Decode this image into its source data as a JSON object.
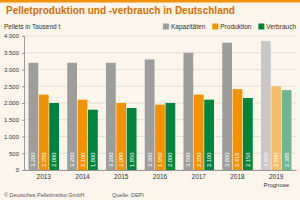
{
  "chart_data": {
    "type": "bar",
    "title": "Pelletproduktion und -verbrauch in Deutschland",
    "y_label": "Pellets in Tausend t",
    "categories": [
      "2013",
      "2014",
      "2015",
      "2016",
      "2017",
      "2018",
      "2019"
    ],
    "series": [
      {
        "name": "Kapazitäten",
        "color": "#9d9d9c",
        "colors": [
          "#9d9d9c",
          "#9d9d9c",
          "#9d9d9c",
          "#9d9d9c",
          "#9d9d9c",
          "#9d9d9c",
          "#c8c8c7"
        ],
        "values": [
          3200,
          3200,
          3200,
          3300,
          3500,
          3800,
          3850
        ],
        "value_labels": [
          "3.200",
          "3.200",
          "3.200",
          "3.300",
          "3.500",
          "3.800",
          "3.850"
        ]
      },
      {
        "name": "Produktion",
        "color": "#f39200",
        "colors": [
          "#f39200",
          "#f39200",
          "#f39200",
          "#f39200",
          "#f39200",
          "#f39200",
          "#f8bd6b"
        ],
        "values": [
          2250,
          2100,
          2000,
          1950,
          2250,
          2415,
          2500
        ],
        "value_labels": [
          "2.250",
          "2.100",
          "2.000",
          "1.950",
          "2.250",
          "2.415",
          "2.500"
        ]
      },
      {
        "name": "Verbrauch",
        "color": "#00843d",
        "colors": [
          "#00843d",
          "#00843d",
          "#00843d",
          "#00843d",
          "#00843d",
          "#00843d",
          "#6fb88f"
        ],
        "values": [
          2000,
          1800,
          1850,
          2000,
          2100,
          2150,
          2385
        ],
        "value_labels": [
          "2.000",
          "1.800",
          "1.850",
          "2.000",
          "2.100",
          "2.150",
          "2.385"
        ]
      }
    ],
    "ylim": [
      0,
      4000
    ],
    "yticks": [
      0,
      500,
      {
        "value": 1000,
        "label": "1.000"
      },
      {
        "value": 1500,
        "label": "1.500"
      },
      {
        "value": 2000,
        "label": "2.000"
      },
      {
        "value": 2500,
        "label": "2.500"
      },
      {
        "value": 3000,
        "label": "3.000"
      },
      {
        "value": 3500,
        "label": "3.500"
      },
      {
        "value": 4000,
        "label": "4.000"
      }
    ],
    "grid": true,
    "legend": "top-right",
    "data_labels": true,
    "annotations": [
      "Prognose",
      "© Deutsches Pelletinstitut GmbH",
      "Quelle: DEPI"
    ]
  }
}
